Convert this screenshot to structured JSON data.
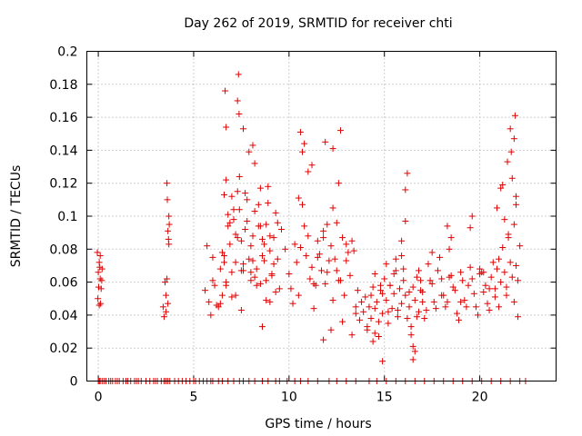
{
  "chart_data": {
    "type": "scatter",
    "title": "Day 262 of 2019, SRMTID for receiver chti",
    "xlabel": "GPS time / hours",
    "ylabel": "SRMTID / TECUs",
    "xlim": [
      -0.6,
      24
    ],
    "ylim": [
      0,
      0.2
    ],
    "grid": true,
    "marker": "plus",
    "marker_color": "#e00000",
    "x_ticks": [
      {
        "value": 0,
        "label": "0"
      },
      {
        "value": 5,
        "label": "5"
      },
      {
        "value": 10,
        "label": "10"
      },
      {
        "value": 15,
        "label": "15"
      },
      {
        "value": 20,
        "label": "20"
      }
    ],
    "y_ticks": [
      {
        "value": 0,
        "label": "0"
      },
      {
        "value": 0.02,
        "label": "0.02"
      },
      {
        "value": 0.04,
        "label": "0.04"
      },
      {
        "value": 0.06,
        "label": "0.06"
      },
      {
        "value": 0.08,
        "label": "0.08"
      },
      {
        "value": 0.1,
        "label": "0.1"
      },
      {
        "value": 0.12,
        "label": "0.12"
      },
      {
        "value": 0.14,
        "label": "0.14"
      },
      {
        "value": 0.16,
        "label": "0.16"
      },
      {
        "value": 0.18,
        "label": "0.18"
      },
      {
        "value": 0.2,
        "label": "0.2"
      }
    ],
    "series": [
      {
        "name": "SRMTID",
        "x": [
          -0.05,
          -0.02,
          0.0,
          0.02,
          0.05,
          0.08,
          0.1,
          0.12,
          0.15,
          0.18,
          0.2,
          0.05,
          0.1,
          3.4,
          3.45,
          3.5,
          3.55,
          3.6,
          3.62,
          3.65,
          3.68,
          3.7,
          3.72,
          3.6,
          3.65,
          3.7,
          3.55,
          5.6,
          5.8,
          6.0,
          6.2,
          6.4,
          6.5,
          6.6,
          6.7,
          6.8,
          6.9,
          7.0,
          7.1,
          7.2,
          7.3,
          7.4,
          7.5,
          7.6,
          7.7,
          7.8,
          7.9,
          8.0,
          8.1,
          8.2,
          8.3,
          8.4,
          8.5,
          8.6,
          8.7,
          8.8,
          8.9,
          9.0,
          9.1,
          9.2,
          9.3,
          9.4,
          9.5,
          9.6,
          9.8,
          6.6,
          6.8,
          7.0,
          7.2,
          7.4,
          7.6,
          7.8,
          8.0,
          8.2,
          8.4,
          8.6,
          8.8,
          9.0,
          9.2,
          9.4,
          6.5,
          6.7,
          6.9,
          7.1,
          7.3,
          7.5,
          7.7,
          7.9,
          8.1,
          8.3,
          8.5,
          8.7,
          8.9,
          9.1,
          9.3,
          6.4,
          6.6,
          7.0,
          7.5,
          8.0,
          8.5,
          9.0,
          6.7,
          7.2,
          7.6,
          8.2,
          8.8,
          5.9,
          6.1,
          6.3,
          5.7,
          6.0,
          7.3,
          7.35,
          7.38,
          6.65,
          6.7,
          8.1,
          8.6,
          10.0,
          10.2,
          10.4,
          10.6,
          10.8,
          11.0,
          11.2,
          11.4,
          11.6,
          11.8,
          12.0,
          12.2,
          12.4,
          12.6,
          12.8,
          13.0,
          13.2,
          13.4,
          13.6,
          13.8,
          10.1,
          10.3,
          10.5,
          10.7,
          10.9,
          11.1,
          11.3,
          11.5,
          11.7,
          11.9,
          12.1,
          12.3,
          12.5,
          12.7,
          12.9,
          13.1,
          13.3,
          13.5,
          13.7,
          10.5,
          11.0,
          11.5,
          12.0,
          12.5,
          13.0,
          13.5,
          10.8,
          11.3,
          11.8,
          12.3,
          12.8,
          13.3,
          10.6,
          10.7,
          11.2,
          11.9,
          12.3,
          12.6,
          12.7,
          11.8,
          12.2,
          13.9,
          14.0,
          14.1,
          14.2,
          14.3,
          14.4,
          14.5,
          14.6,
          14.7,
          14.8,
          14.9,
          15.0,
          15.1,
          15.2,
          15.3,
          15.4,
          15.5,
          15.6,
          15.7,
          15.8,
          15.9,
          16.0,
          16.1,
          16.2,
          16.3,
          16.4,
          16.5,
          16.6,
          16.7,
          16.8,
          16.9,
          17.0,
          14.1,
          14.3,
          14.5,
          14.7,
          14.9,
          15.1,
          15.3,
          15.5,
          15.7,
          15.9,
          16.1,
          16.3,
          16.5,
          16.7,
          16.9,
          14.5,
          14.8,
          15.2,
          15.6,
          16.0,
          16.4,
          16.8,
          14.4,
          14.9,
          16.2,
          16.1,
          16.6,
          16.5,
          15.9,
          17.0,
          17.2,
          17.4,
          17.6,
          17.8,
          18.0,
          18.2,
          18.4,
          18.6,
          18.8,
          19.0,
          19.2,
          19.4,
          19.6,
          19.8,
          20.0,
          20.2,
          20.4,
          20.6,
          20.8,
          17.1,
          17.3,
          17.5,
          17.7,
          17.9,
          18.1,
          18.3,
          18.5,
          18.7,
          18.9,
          19.1,
          19.3,
          19.5,
          19.7,
          19.9,
          20.1,
          20.3,
          20.5,
          20.7,
          17.5,
          18.0,
          18.5,
          19.0,
          19.5,
          20.0,
          20.5,
          18.3,
          18.4,
          19.6,
          20.2,
          20.8,
          20.9,
          21.0,
          21.1,
          21.2,
          21.3,
          21.4,
          21.5,
          21.6,
          21.7,
          21.8,
          21.9,
          22.0,
          22.1,
          20.9,
          21.1,
          21.3,
          21.5,
          21.7,
          21.9,
          21.0,
          21.4,
          21.8,
          22.0,
          21.6,
          21.65,
          21.8,
          21.85,
          21.45,
          21.2,
          21.9
        ],
        "y": [
          0.078,
          0.05,
          0.066,
          0.057,
          0.072,
          0.069,
          0.062,
          0.047,
          0.056,
          0.061,
          0.068,
          0.046,
          0.076,
          0.045,
          0.039,
          0.06,
          0.052,
          0.12,
          0.11,
          0.091,
          0.086,
          0.1,
          0.095,
          0.062,
          0.047,
          0.083,
          0.042,
          0.055,
          0.048,
          0.061,
          0.046,
          0.068,
          0.052,
          0.072,
          0.058,
          0.094,
          0.083,
          0.112,
          0.098,
          0.072,
          0.115,
          0.104,
          0.085,
          0.067,
          0.092,
          0.11,
          0.074,
          0.061,
          0.088,
          0.103,
          0.068,
          0.094,
          0.117,
          0.086,
          0.073,
          0.095,
          0.108,
          0.079,
          0.064,
          0.087,
          0.102,
          0.074,
          0.056,
          0.092,
          0.08,
          0.113,
          0.101,
          0.066,
          0.089,
          0.124,
          0.153,
          0.097,
          0.082,
          0.132,
          0.107,
          0.076,
          0.061,
          0.088,
          0.071,
          0.096,
          0.078,
          0.122,
          0.096,
          0.104,
          0.087,
          0.067,
          0.114,
          0.139,
          0.073,
          0.058,
          0.094,
          0.083,
          0.118,
          0.065,
          0.054,
          0.047,
          0.076,
          0.051,
          0.043,
          0.066,
          0.059,
          0.048,
          0.06,
          0.052,
          0.071,
          0.063,
          0.049,
          0.04,
          0.058,
          0.045,
          0.082,
          0.075,
          0.17,
          0.186,
          0.162,
          0.176,
          0.154,
          0.143,
          0.033,
          0.065,
          0.047,
          0.072,
          0.081,
          0.094,
          0.088,
          0.069,
          0.058,
          0.077,
          0.091,
          0.066,
          0.082,
          0.074,
          0.061,
          0.087,
          0.073,
          0.064,
          0.079,
          0.055,
          0.048,
          0.056,
          0.083,
          0.052,
          0.107,
          0.076,
          0.062,
          0.044,
          0.085,
          0.067,
          0.059,
          0.073,
          0.049,
          0.096,
          0.061,
          0.052,
          0.078,
          0.085,
          0.045,
          0.037,
          0.111,
          0.127,
          0.075,
          0.095,
          0.067,
          0.083,
          0.041,
          0.144,
          0.059,
          0.087,
          0.105,
          0.036,
          0.028,
          0.151,
          0.139,
          0.131,
          0.145,
          0.141,
          0.12,
          0.152,
          0.025,
          0.031,
          0.042,
          0.051,
          0.033,
          0.045,
          0.038,
          0.057,
          0.029,
          0.048,
          0.036,
          0.055,
          0.041,
          0.062,
          0.049,
          0.035,
          0.058,
          0.044,
          0.053,
          0.067,
          0.039,
          0.056,
          0.047,
          0.061,
          0.052,
          0.038,
          0.045,
          0.028,
          0.057,
          0.049,
          0.063,
          0.042,
          0.055,
          0.048,
          0.031,
          0.052,
          0.044,
          0.027,
          0.053,
          0.071,
          0.058,
          0.065,
          0.043,
          0.076,
          0.097,
          0.054,
          0.021,
          0.039,
          0.061,
          0.065,
          0.058,
          0.042,
          0.074,
          0.068,
          0.033,
          0.067,
          0.024,
          0.012,
          0.126,
          0.116,
          0.018,
          0.013,
          0.085,
          0.054,
          0.043,
          0.061,
          0.048,
          0.067,
          0.052,
          0.045,
          0.063,
          0.057,
          0.041,
          0.066,
          0.049,
          0.058,
          0.062,
          0.045,
          0.068,
          0.054,
          0.047,
          0.063,
          0.056,
          0.038,
          0.071,
          0.059,
          0.044,
          0.075,
          0.052,
          0.048,
          0.064,
          0.055,
          0.037,
          0.061,
          0.045,
          0.069,
          0.053,
          0.04,
          0.066,
          0.058,
          0.043,
          0.072,
          0.078,
          0.062,
          0.087,
          0.048,
          0.093,
          0.065,
          0.056,
          0.094,
          0.08,
          0.1,
          0.066,
          0.051,
          0.068,
          0.074,
          0.06,
          0.081,
          0.066,
          0.057,
          0.089,
          0.072,
          0.063,
          0.095,
          0.07,
          0.061,
          0.082,
          0.105,
          0.117,
          0.098,
          0.087,
          0.123,
          0.107,
          0.045,
          0.052,
          0.048,
          0.039,
          0.153,
          0.139,
          0.147,
          0.161,
          0.133,
          0.119,
          0.112
        ]
      }
    ],
    "zero_marks_x": [
      0.0,
      0.05,
      0.1,
      0.2,
      0.3,
      0.4,
      0.55,
      0.65,
      0.75,
      0.9,
      1.0,
      1.1,
      1.3,
      1.45,
      1.55,
      1.7,
      1.9,
      2.0,
      2.1,
      2.25,
      2.5,
      2.7,
      2.9,
      3.0,
      3.1,
      3.3,
      3.45,
      3.55,
      3.65,
      3.75,
      4.0,
      4.2,
      4.4,
      4.6,
      4.8,
      5.0,
      5.1,
      5.3,
      5.5,
      5.7,
      5.9,
      6.0,
      6.3,
      6.5,
      6.8,
      7.1,
      7.4,
      7.6,
      7.9,
      8.2,
      8.6,
      8.9,
      9.3,
      9.5,
      9.9,
      10.3,
      10.6,
      11.0,
      11.5,
      12.1,
      12.5,
      13.0,
      13.5,
      14.2,
      14.6,
      15.1,
      15.6,
      16.1,
      16.6,
      17.1,
      17.6,
      18.1,
      18.6,
      19.1,
      19.6,
      20.1,
      20.6,
      21.1,
      21.6,
      22.1,
      22.4
    ]
  }
}
